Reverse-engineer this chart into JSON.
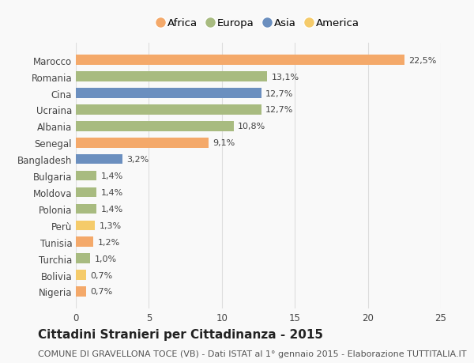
{
  "countries": [
    "Marocco",
    "Romania",
    "Cina",
    "Ucraina",
    "Albania",
    "Senegal",
    "Bangladesh",
    "Bulgaria",
    "Moldova",
    "Polonia",
    "Perù",
    "Tunisia",
    "Turchia",
    "Bolivia",
    "Nigeria"
  ],
  "values": [
    22.5,
    13.1,
    12.7,
    12.7,
    10.8,
    9.1,
    3.2,
    1.4,
    1.4,
    1.4,
    1.3,
    1.2,
    1.0,
    0.7,
    0.7
  ],
  "labels": [
    "22,5%",
    "13,1%",
    "12,7%",
    "12,7%",
    "10,8%",
    "9,1%",
    "3,2%",
    "1,4%",
    "1,4%",
    "1,4%",
    "1,3%",
    "1,2%",
    "1,0%",
    "0,7%",
    "0,7%"
  ],
  "continents": [
    "Africa",
    "Europa",
    "Asia",
    "Europa",
    "Europa",
    "Africa",
    "Asia",
    "Europa",
    "Europa",
    "Europa",
    "America",
    "Africa",
    "Europa",
    "America",
    "Africa"
  ],
  "continent_colors": {
    "Africa": "#F4A96A",
    "Europa": "#A8BB80",
    "Asia": "#6B8FBF",
    "America": "#F5CB6A"
  },
  "legend_order": [
    "Africa",
    "Europa",
    "Asia",
    "America"
  ],
  "title": "Cittadini Stranieri per Cittadinanza - 2015",
  "subtitle": "COMUNE DI GRAVELLONA TOCE (VB) - Dati ISTAT al 1° gennaio 2015 - Elaborazione TUTTITALIA.IT",
  "xlim": [
    0,
    25
  ],
  "xticks": [
    0,
    5,
    10,
    15,
    20,
    25
  ],
  "bg_color": "#f9f9f9",
  "grid_color": "#dddddd",
  "bar_height": 0.6,
  "title_fontsize": 11,
  "subtitle_fontsize": 8,
  "label_fontsize": 8,
  "tick_fontsize": 8.5
}
